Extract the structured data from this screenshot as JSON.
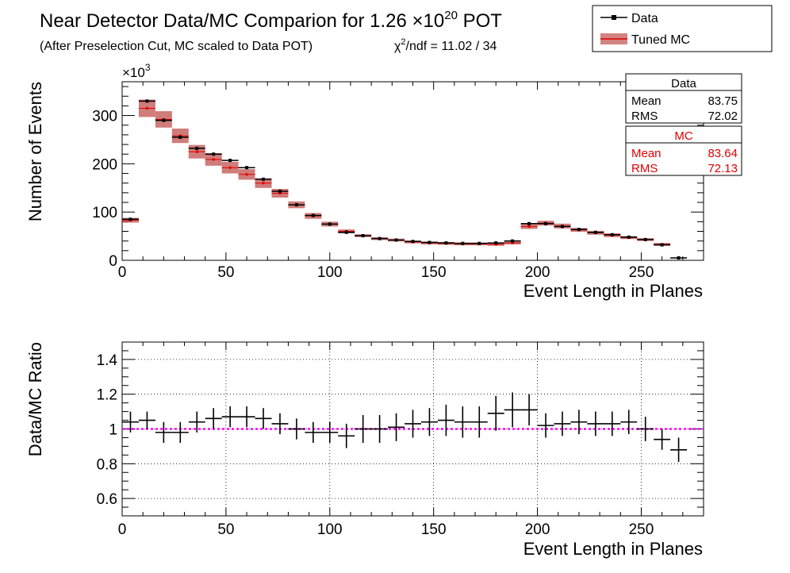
{
  "header": {
    "title_prefix": "Near Detector Data/MC Comparion for 1.26 ×10",
    "title_exponent": "20",
    "title_suffix": " POT",
    "subtitle": "(After Preselection Cut, MC scaled to Data POT)",
    "chi2_symbol": "χ",
    "chi2_exponent": "2",
    "chi2_text": "/ndf = 11.02 / 34"
  },
  "legend": {
    "data_label": "Data",
    "mc_label": "Tuned MC"
  },
  "stats": {
    "data": {
      "title": "Data",
      "mean_label": "Mean",
      "mean": "83.75",
      "rms_label": "RMS",
      "rms": "72.02"
    },
    "mc": {
      "title": "MC",
      "mean_label": "Mean",
      "mean": "83.64",
      "rms_label": "RMS",
      "rms": "72.13"
    }
  },
  "colors": {
    "data": "#000000",
    "mc_band": "#c0504d",
    "mc_point": "#e00000",
    "ratio_line": "#ff00ff"
  },
  "chart_data": [
    {
      "type": "bar",
      "xlabel": "Event Length in Planes",
      "ylabel": "Number of Events",
      "yscale_label": "×10",
      "yscale_exponent": "3",
      "xlim": [
        0,
        280
      ],
      "ylim": [
        0,
        370
      ],
      "xticks": [
        "0",
        "50",
        "100",
        "150",
        "200",
        "250"
      ],
      "yticks": [
        "0",
        "100",
        "200",
        "300"
      ],
      "grid": false,
      "legend_position": "top-right",
      "bin_width": 8,
      "x": [
        4,
        12,
        20,
        28,
        36,
        44,
        52,
        60,
        68,
        76,
        84,
        92,
        100,
        108,
        116,
        124,
        132,
        140,
        148,
        156,
        164,
        172,
        180,
        188,
        196,
        204,
        212,
        220,
        228,
        236,
        244,
        252,
        260,
        268
      ],
      "series": [
        {
          "name": "Data",
          "values": [
            85,
            330,
            290,
            255,
            232,
            220,
            207,
            192,
            168,
            143,
            115,
            93,
            75,
            58,
            51,
            45,
            42,
            39,
            37,
            36,
            35,
            35,
            36,
            40,
            76,
            76,
            70,
            64,
            58,
            53,
            48,
            43,
            32,
            5
          ]
        },
        {
          "name": "Tuned MC",
          "values": [
            83,
            315,
            292,
            258,
            225,
            209,
            192,
            178,
            160,
            139,
            115,
            92,
            75,
            60,
            51,
            45,
            42,
            38,
            36,
            35,
            34,
            34,
            33,
            36,
            70,
            77,
            71,
            63,
            57,
            52,
            47,
            43,
            33,
            5
          ],
          "band_half_height": [
            5,
            18,
            17,
            15,
            14,
            13,
            12,
            11,
            10,
            9,
            7,
            6,
            5,
            4,
            3,
            3,
            3,
            3,
            3,
            3,
            3,
            3,
            3,
            3,
            5,
            5,
            5,
            4,
            4,
            4,
            3,
            3,
            3,
            1
          ]
        }
      ]
    },
    {
      "type": "scatter",
      "xlabel": "Event Length in Planes",
      "ylabel": "Data/MC Ratio",
      "xlim": [
        0,
        280
      ],
      "ylim": [
        0.5,
        1.5
      ],
      "xticks": [
        "0",
        "50",
        "100",
        "150",
        "200",
        "250"
      ],
      "yticks": [
        "0.6",
        "0.8",
        "1",
        "1.2",
        "1.4"
      ],
      "grid": true,
      "reference_line": 1.0,
      "bin_width": 8,
      "x": [
        4,
        12,
        20,
        28,
        36,
        44,
        52,
        60,
        68,
        76,
        84,
        92,
        100,
        108,
        116,
        124,
        132,
        140,
        148,
        156,
        164,
        172,
        180,
        188,
        196,
        204,
        212,
        220,
        228,
        236,
        244,
        252,
        260,
        268
      ],
      "values": [
        1.04,
        1.05,
        0.98,
        0.98,
        1.04,
        1.06,
        1.07,
        1.07,
        1.06,
        1.03,
        1.0,
        0.98,
        0.98,
        0.96,
        1.0,
        1.0,
        1.01,
        1.03,
        1.04,
        1.05,
        1.04,
        1.04,
        1.09,
        1.11,
        1.11,
        1.02,
        1.03,
        1.04,
        1.03,
        1.03,
        1.04,
        1.0,
        0.94,
        0.88
      ],
      "errors": [
        0.06,
        0.05,
        0.06,
        0.06,
        0.06,
        0.06,
        0.06,
        0.06,
        0.06,
        0.06,
        0.06,
        0.06,
        0.06,
        0.07,
        0.08,
        0.08,
        0.08,
        0.08,
        0.08,
        0.09,
        0.09,
        0.09,
        0.1,
        0.1,
        0.09,
        0.07,
        0.07,
        0.07,
        0.07,
        0.07,
        0.07,
        0.07,
        0.06,
        0.07
      ]
    }
  ]
}
